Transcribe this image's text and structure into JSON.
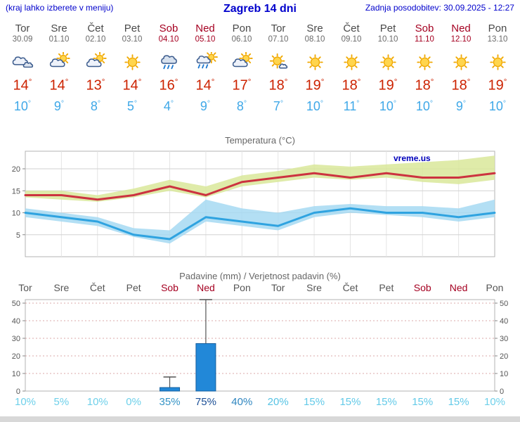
{
  "header": {
    "left_note": "(kraj lahko izberete v meniju)",
    "title": "Zagreb 14 dni",
    "updated": "Zadnja posodobitev: 30.09.2025 - 12:27"
  },
  "degree_symbol": "°",
  "days": [
    {
      "name": "Tor",
      "date": "30.09",
      "icon": "cloudy",
      "tmax": "14",
      "tmin": "10",
      "weekend": false
    },
    {
      "name": "Sre",
      "date": "01.10",
      "icon": "partly-cloudy",
      "tmax": "14",
      "tmin": "9",
      "weekend": false
    },
    {
      "name": "Čet",
      "date": "02.10",
      "icon": "partly-cloudy",
      "tmax": "13",
      "tmin": "8",
      "weekend": false
    },
    {
      "name": "Pet",
      "date": "03.10",
      "icon": "sunny",
      "tmax": "14",
      "tmin": "5",
      "weekend": false
    },
    {
      "name": "Sob",
      "date": "04.10",
      "icon": "rain",
      "tmax": "16",
      "tmin": "4",
      "weekend": true
    },
    {
      "name": "Ned",
      "date": "05.10",
      "icon": "sun-rain",
      "tmax": "14",
      "tmin": "9",
      "weekend": true
    },
    {
      "name": "Pon",
      "date": "06.10",
      "icon": "partly-cloudy",
      "tmax": "17",
      "tmin": "8",
      "weekend": false
    },
    {
      "name": "Tor",
      "date": "07.10",
      "icon": "mostly-sunny",
      "tmax": "18",
      "tmin": "7",
      "weekend": false
    },
    {
      "name": "Sre",
      "date": "08.10",
      "icon": "sunny",
      "tmax": "19",
      "tmin": "10",
      "weekend": false
    },
    {
      "name": "Čet",
      "date": "09.10",
      "icon": "sunny",
      "tmax": "18",
      "tmin": "11",
      "weekend": false
    },
    {
      "name": "Pet",
      "date": "10.10",
      "icon": "sunny",
      "tmax": "19",
      "tmin": "10",
      "weekend": false
    },
    {
      "name": "Sob",
      "date": "11.10",
      "icon": "sunny",
      "tmax": "18",
      "tmin": "10",
      "weekend": true
    },
    {
      "name": "Ned",
      "date": "12.10",
      "icon": "sunny",
      "tmax": "18",
      "tmin": "9",
      "weekend": true
    },
    {
      "name": "Pon",
      "date": "13.10",
      "icon": "sunny",
      "tmax": "19",
      "tmin": "10",
      "weekend": false
    }
  ],
  "chart_data": [
    {
      "type": "line",
      "title": "Temperatura (°C)",
      "watermark": "vreme.us",
      "watermark_color": "#0000bb",
      "x_labels": [
        "30.09",
        "01.10",
        "02.10",
        "03.10",
        "04.10",
        "05.10",
        "06.10",
        "07.10",
        "08.10",
        "09.10",
        "10.10",
        "11.10",
        "12.10",
        "13.10"
      ],
      "ylim": [
        0,
        24
      ],
      "yticks": [
        5,
        10,
        15,
        20
      ],
      "grid": true,
      "band_colors": {
        "max": "#d9e79a",
        "min": "#a6d9f2"
      },
      "series": [
        {
          "name": "max_temp",
          "color": "#cc3340",
          "values": [
            14,
            14,
            13,
            14,
            16,
            14,
            17,
            18,
            19,
            18,
            19,
            18,
            18,
            19
          ]
        },
        {
          "name": "min_temp",
          "color": "#2fa3e0",
          "values": [
            10,
            9,
            8,
            5,
            4,
            9,
            8,
            7,
            10,
            11,
            10,
            10,
            9,
            10
          ]
        },
        {
          "name": "max_upper",
          "values": [
            15,
            15,
            14,
            15.5,
            17.5,
            16,
            18.5,
            19.5,
            21,
            20.5,
            21,
            21.5,
            22,
            23
          ]
        },
        {
          "name": "max_lower",
          "values": [
            13.5,
            13,
            12.5,
            13.5,
            15,
            13.5,
            16,
            17,
            18,
            17.5,
            18,
            17,
            16.5,
            17.5
          ]
        },
        {
          "name": "min_upper",
          "values": [
            11,
            10,
            9,
            6.5,
            6,
            13,
            11,
            10,
            11.5,
            12,
            11.5,
            11.5,
            11,
            13
          ]
        },
        {
          "name": "min_lower",
          "values": [
            9,
            8,
            7,
            4.5,
            3,
            8,
            7,
            6,
            9,
            10,
            9.5,
            9,
            8,
            9
          ]
        }
      ]
    },
    {
      "type": "bar",
      "title": "Padavine (mm) / Verjetnost padavin (%)",
      "categories": [
        "Tor",
        "Sre",
        "Čet",
        "Pet",
        "Sob",
        "Ned",
        "Pon",
        "Tor",
        "Sre",
        "Čet",
        "Pet",
        "Sob",
        "Ned",
        "Pon"
      ],
      "weekend": [
        false,
        false,
        false,
        false,
        true,
        true,
        false,
        false,
        false,
        false,
        false,
        true,
        true,
        false
      ],
      "ylim": [
        0,
        52
      ],
      "yticks": [
        0,
        10,
        20,
        30,
        40,
        50
      ],
      "bar_color": "#2288d8",
      "bar_border": "#155f9e",
      "precip_mm": [
        0,
        0,
        0,
        0,
        2,
        27,
        0,
        0,
        0,
        0,
        0,
        0,
        0,
        0
      ],
      "precip_max_mm": [
        null,
        null,
        null,
        null,
        8,
        52,
        null,
        null,
        null,
        null,
        null,
        null,
        null,
        null
      ],
      "probability": [
        {
          "label": "10%",
          "color": "#6ed0ea"
        },
        {
          "label": "5%",
          "color": "#6ed0ea"
        },
        {
          "label": "10%",
          "color": "#6ed0ea"
        },
        {
          "label": "0%",
          "color": "#6ed0ea"
        },
        {
          "label": "35%",
          "color": "#3694c6"
        },
        {
          "label": "75%",
          "color": "#1c4f96"
        },
        {
          "label": "40%",
          "color": "#2f86c0"
        },
        {
          "label": "20%",
          "color": "#56c3e4"
        },
        {
          "label": "15%",
          "color": "#63cae8"
        },
        {
          "label": "15%",
          "color": "#63cae8"
        },
        {
          "label": "15%",
          "color": "#63cae8"
        },
        {
          "label": "15%",
          "color": "#63cae8"
        },
        {
          "label": "15%",
          "color": "#63cae8"
        },
        {
          "label": "10%",
          "color": "#6ed0ea"
        }
      ]
    }
  ]
}
